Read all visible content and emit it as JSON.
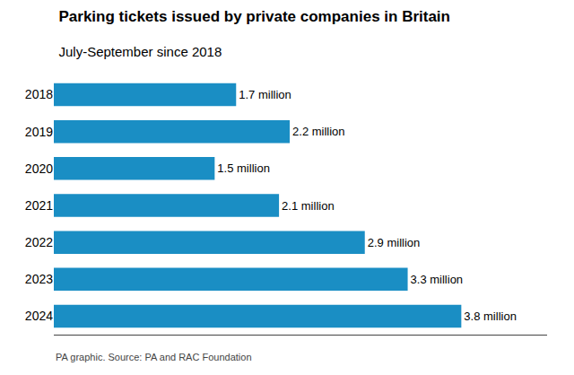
{
  "chart_data": {
    "type": "bar",
    "orientation": "horizontal",
    "title": "Parking tickets issued by private companies in Britain",
    "subtitle": "July-September since 2018",
    "annotations": [
      "PA graphic. Source: PA and RAC Foundation"
    ],
    "categories": [
      "2018",
      "2019",
      "2020",
      "2021",
      "2022",
      "2023",
      "2024"
    ],
    "values": [
      1.7,
      2.2,
      1.5,
      2.1,
      2.9,
      3.3,
      3.8
    ],
    "value_labels": [
      "1.7 million",
      "2.2 million",
      "1.5 million",
      "2.1 million",
      "2.9 million",
      "3.3 million",
      "3.8 million"
    ],
    "data_labels": true,
    "color": "#1a8ec4",
    "xlim": [
      0,
      4.6
    ],
    "tick_labels": "y",
    "grid": false
  }
}
